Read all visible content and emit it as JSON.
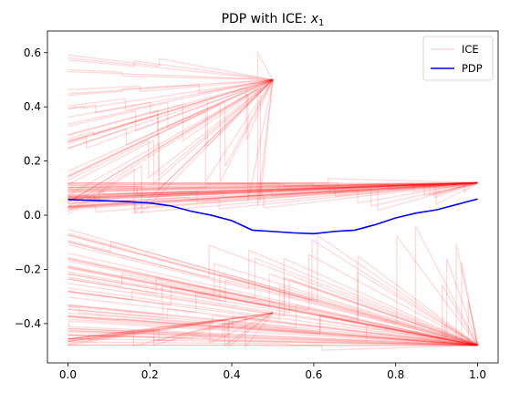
{
  "chart_data": {
    "type": "line",
    "title": "PDP with ICE: ",
    "title_var": "x",
    "title_sub": "1",
    "xlabel": "",
    "ylabel": "",
    "xlim": [
      -0.05,
      1.05
    ],
    "ylim": [
      -0.545,
      0.68
    ],
    "x_ticks": [
      {
        "value": 0.0,
        "label": "0.0"
      },
      {
        "value": 0.2,
        "label": "0.2"
      },
      {
        "value": 0.4,
        "label": "0.4"
      },
      {
        "value": 0.6,
        "label": "0.6"
      },
      {
        "value": 0.8,
        "label": "0.8"
      },
      {
        "value": 1.0,
        "label": "1.0"
      }
    ],
    "y_ticks": [
      {
        "value": -0.4,
        "label": "−0.4"
      },
      {
        "value": -0.2,
        "label": "−0.2"
      },
      {
        "value": 0.0,
        "label": "0.0"
      },
      {
        "value": 0.2,
        "label": "0.2"
      },
      {
        "value": 0.4,
        "label": "0.4"
      },
      {
        "value": 0.6,
        "label": "0.6"
      }
    ],
    "legend": {
      "position": "top-right",
      "entries": [
        {
          "label": "ICE",
          "color": "#ff0000",
          "alpha": 0.15
        },
        {
          "label": "PDP",
          "color": "#0000ff",
          "alpha": 1.0
        }
      ]
    },
    "series": [
      {
        "name": "PDP",
        "color": "#0000ff",
        "x": [
          0.0,
          0.05,
          0.1,
          0.15,
          0.2,
          0.25,
          0.3,
          0.35,
          0.4,
          0.45,
          0.5,
          0.55,
          0.6,
          0.65,
          0.7,
          0.75,
          0.8,
          0.85,
          0.9,
          0.95,
          1.0
        ],
        "y": [
          0.058,
          0.055,
          0.053,
          0.05,
          0.045,
          0.035,
          0.015,
          0.0,
          -0.02,
          -0.055,
          -0.06,
          -0.065,
          -0.068,
          -0.06,
          -0.055,
          -0.035,
          -0.01,
          0.008,
          0.02,
          0.04,
          0.06
        ]
      }
    ],
    "ice_groups": [
      {
        "x_start": 0.0,
        "x_end": 0.5,
        "y_start_range": [
          0.0,
          0.6
        ],
        "y_end": 0.5,
        "count": 35
      },
      {
        "x_start": 0.0,
        "x_end": 1.0,
        "y_start_range": [
          0.02,
          0.12
        ],
        "y_end": 0.12,
        "count": 40
      },
      {
        "x_start": 0.0,
        "x_end": 1.0,
        "y_start_range": [
          -0.48,
          -0.05
        ],
        "y_end": -0.48,
        "count": 55
      },
      {
        "x_start": 0.0,
        "x_end": 0.5,
        "y_start_range": [
          -0.48,
          -0.45
        ],
        "y_end": -0.36,
        "count": 10
      }
    ]
  }
}
